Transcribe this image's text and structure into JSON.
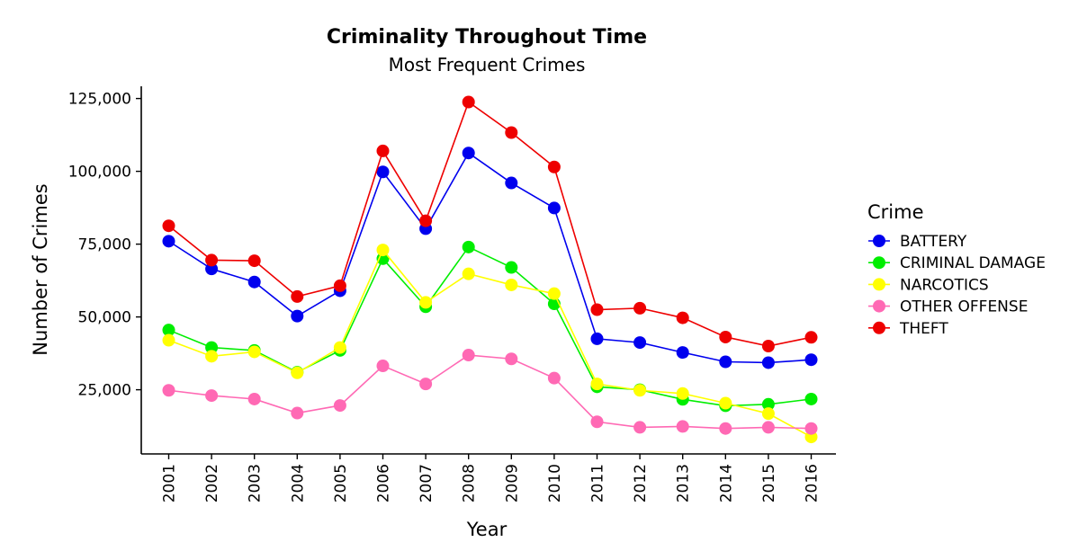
{
  "chart_data": {
    "type": "line",
    "title": "Criminality Throughout Time",
    "subtitle": "Most Frequent Crimes",
    "xlabel": "Year",
    "ylabel": "Number of Crimes",
    "x": [
      "2001",
      "2002",
      "2003",
      "2004",
      "2005",
      "2006",
      "2007",
      "2008",
      "2009",
      "2010",
      "2011",
      "2012",
      "2013",
      "2014",
      "2015",
      "2016"
    ],
    "y_ticks": [
      25000,
      50000,
      75000,
      100000,
      125000
    ],
    "y_tick_labels": [
      "25,000",
      "50,000",
      "75,000",
      "100,000",
      "125,000"
    ],
    "ylim": [
      2500,
      130000
    ],
    "grid": false,
    "legend": {
      "title": "Crime",
      "placement": "right"
    },
    "series": [
      {
        "name": "BATTERY",
        "color": "#0000ee",
        "values": [
          76000,
          66500,
          62000,
          50300,
          59000,
          99800,
          80300,
          106300,
          96000,
          87400,
          42500,
          41200,
          37800,
          34600,
          34300,
          35300
        ]
      },
      {
        "name": "CRIMINAL DAMAGE",
        "color": "#00ee00",
        "values": [
          45500,
          39500,
          38500,
          31000,
          38500,
          70000,
          53500,
          74000,
          67000,
          54500,
          26000,
          25000,
          21700,
          19500,
          20000,
          21800
        ]
      },
      {
        "name": "NARCOTICS",
        "color": "#ffff00",
        "values": [
          42000,
          36500,
          38000,
          30800,
          39500,
          73000,
          55000,
          64800,
          61000,
          58000,
          27000,
          24800,
          23700,
          20400,
          16800,
          8800
        ]
      },
      {
        "name": "OTHER OFFENSE",
        "color": "#ff69b4",
        "values": [
          24800,
          23000,
          21800,
          17000,
          19600,
          33200,
          27000,
          36900,
          35600,
          29000,
          14000,
          12100,
          12400,
          11700,
          12100,
          11700
        ]
      },
      {
        "name": "THEFT",
        "color": "#ee0000",
        "values": [
          81300,
          69500,
          69300,
          57000,
          60700,
          107000,
          83000,
          123800,
          113300,
          101500,
          52500,
          53000,
          49700,
          43100,
          40000,
          43000
        ]
      }
    ]
  }
}
